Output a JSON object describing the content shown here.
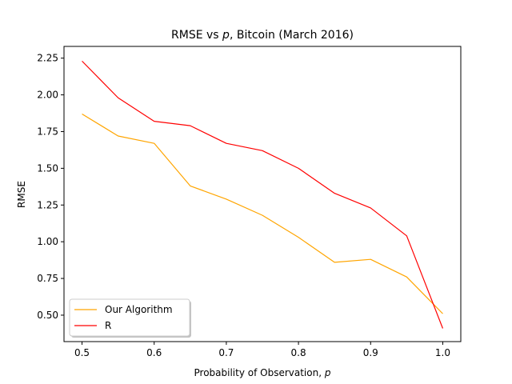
{
  "chart_data": {
    "type": "line",
    "title": "RMSE vs p, Bitcoin (March 2016)",
    "title_parts": {
      "before": "RMSE vs ",
      "italic": "p",
      "after": ", Bitcoin (March 2016)"
    },
    "xlabel": "Probability of Observation, p",
    "xlabel_parts": {
      "before": "Probability of Observation, ",
      "italic": "p"
    },
    "ylabel": "RMSE",
    "xlim": [
      0.475,
      1.025
    ],
    "ylim": [
      0.32,
      2.33
    ],
    "xticks": [
      0.5,
      0.6,
      0.7,
      0.8,
      0.9,
      1.0
    ],
    "xtick_labels": [
      "0.5",
      "0.6",
      "0.7",
      "0.8",
      "0.9",
      "1.0"
    ],
    "yticks": [
      0.5,
      0.75,
      1.0,
      1.25,
      1.5,
      1.75,
      2.0,
      2.25
    ],
    "ytick_labels": [
      "0.50",
      "0.75",
      "1.00",
      "1.25",
      "1.50",
      "1.75",
      "2.00",
      "2.25"
    ],
    "grid": false,
    "legend_position": "lower-left",
    "x": [
      0.5,
      0.55,
      0.6,
      0.65,
      0.7,
      0.75,
      0.8,
      0.85,
      0.9,
      0.95,
      1.0
    ],
    "series": [
      {
        "name": "Our Algorithm",
        "color": "#ffa500",
        "values": [
          1.87,
          1.72,
          1.67,
          1.38,
          1.29,
          1.18,
          1.03,
          0.86,
          0.88,
          0.76,
          0.51
        ]
      },
      {
        "name": "R",
        "color": "#ff0000",
        "values": [
          2.23,
          1.98,
          1.82,
          1.79,
          1.67,
          1.62,
          1.5,
          1.33,
          1.23,
          1.04,
          0.41
        ]
      }
    ]
  }
}
